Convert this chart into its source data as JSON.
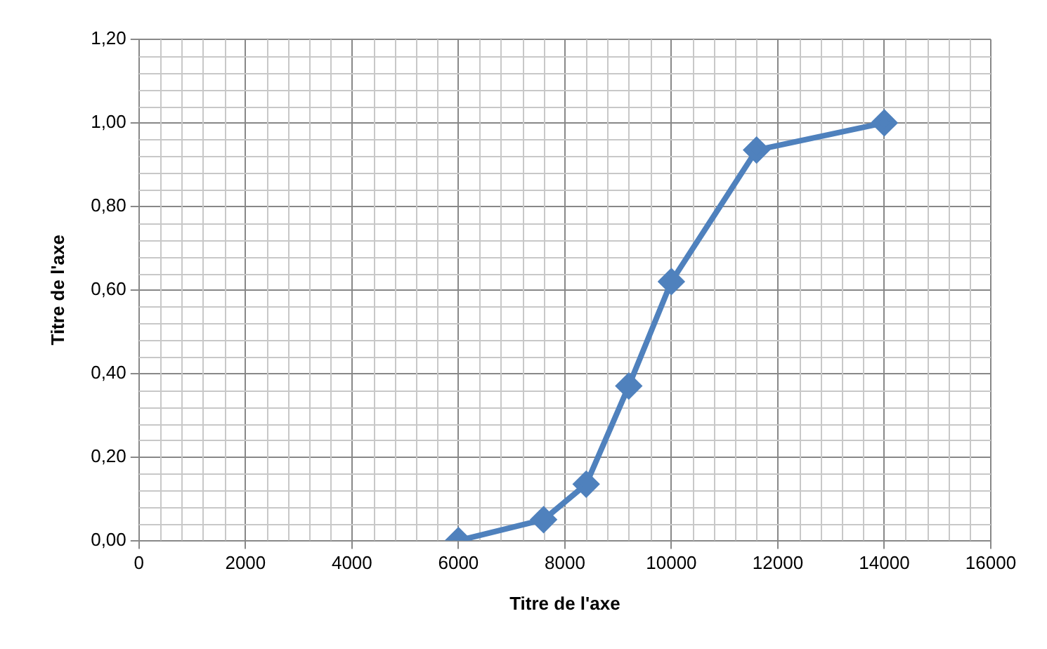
{
  "chart_data": {
    "type": "line",
    "xlabel": "Titre de l'axe",
    "ylabel": "Titre de l'axe",
    "x": [
      6000,
      7600,
      8400,
      9200,
      10000,
      11600,
      14000
    ],
    "series": [
      {
        "color": "#4f81bd",
        "values": [
          0,
          0.05,
          0.135,
          0.37,
          0.62,
          0.935,
          1.0
        ]
      }
    ],
    "xlim": [
      0,
      16000
    ],
    "xticks": [
      0,
      2000,
      4000,
      6000,
      8000,
      10000,
      12000,
      14000,
      16000
    ],
    "ylim": [
      0,
      1.2
    ],
    "yticks": [
      {
        "value": 0,
        "label": "0,00"
      },
      {
        "value": 0.2,
        "label": "0,20"
      },
      {
        "value": 0.4,
        "label": "0,40"
      },
      {
        "value": 0.6,
        "label": "0,60"
      },
      {
        "value": 0.8,
        "label": "0,80"
      },
      {
        "value": 1.0,
        "label": "1,00"
      },
      {
        "value": 1.2,
        "label": "1,20"
      }
    ],
    "grid": true,
    "legend": false,
    "marker": "diamond",
    "line_style": "solid"
  }
}
